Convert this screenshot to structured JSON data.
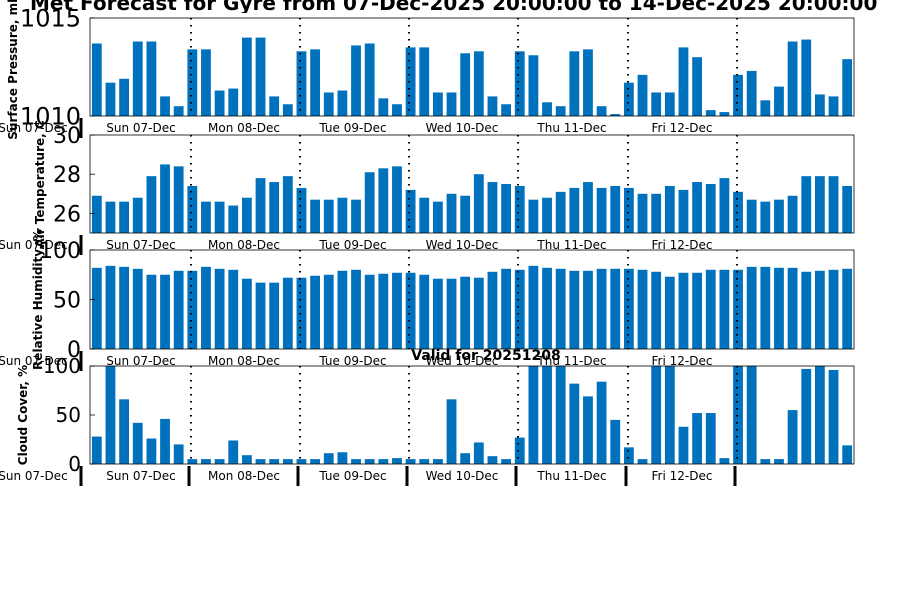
{
  "title": "Met Forecast for Gyre from 07-Dec-2025 20:00:00 to 14-Dec-2025 20:00:00",
  "colors": {
    "bar": "#0072bd",
    "axis": "#000000"
  },
  "chart_data": [
    {
      "type": "bar",
      "ylabel": "Surface Pressure, mb",
      "ylim": [
        1010,
        1015
      ],
      "yticks": [
        1010,
        1015
      ],
      "day_labels": [
        "Sun 07-Dec",
        "Mon 08-Dec",
        "Tue 09-Dec",
        "Wed 10-Dec",
        "Thu 11-Dec",
        "Fri 12-Dec"
      ],
      "corner_label": "Sun 07-Dec",
      "values": [
        1013.7,
        1011.7,
        1011.9,
        1013.8,
        1013.8,
        1011.0,
        1010.5,
        1013.4,
        1013.4,
        1011.3,
        1011.4,
        1014.0,
        1014.0,
        1011.0,
        1010.6,
        1013.3,
        1013.4,
        1011.2,
        1011.3,
        1013.6,
        1013.7,
        1010.9,
        1010.6,
        1013.5,
        1013.5,
        1011.2,
        1011.2,
        1013.2,
        1013.3,
        1011.0,
        1010.6,
        1013.3,
        1013.1,
        1010.7,
        1010.5,
        1013.3,
        1013.4,
        1010.5,
        1010.1,
        1011.7,
        1012.1,
        1011.2,
        1011.2,
        1013.5,
        1013.0,
        1010.3,
        1010.2,
        1012.1,
        1012.3,
        1010.8,
        1011.5,
        1013.8,
        1013.9,
        1011.1,
        1011.0,
        1012.9
      ]
    },
    {
      "type": "bar",
      "ylabel": "Air Temperature, C",
      "ylim": [
        25,
        30
      ],
      "yticks": [
        26,
        28,
        30
      ],
      "day_labels": [
        "Sun 07-Dec",
        "Mon 08-Dec",
        "Tue 09-Dec",
        "Wed 10-Dec",
        "Thu 11-Dec",
        "Fri 12-Dec"
      ],
      "corner_label": "Sun 07-Dec",
      "values": [
        26.9,
        26.6,
        26.6,
        26.8,
        27.9,
        28.5,
        28.4,
        27.4,
        26.6,
        26.6,
        26.4,
        26.8,
        27.8,
        27.6,
        27.9,
        27.3,
        26.7,
        26.7,
        26.8,
        26.7,
        28.1,
        28.3,
        28.4,
        27.2,
        26.8,
        26.6,
        27.0,
        26.9,
        28.0,
        27.6,
        27.5,
        27.4,
        26.7,
        26.8,
        27.1,
        27.3,
        27.6,
        27.3,
        27.4,
        27.3,
        27.0,
        27.0,
        27.4,
        27.2,
        27.6,
        27.5,
        27.8,
        27.1,
        26.7,
        26.6,
        26.7,
        26.9,
        27.9,
        27.9,
        27.9,
        27.4
      ]
    },
    {
      "type": "bar",
      "ylabel": "Relative Humidity, %",
      "ylim": [
        0,
        100
      ],
      "yticks": [
        0,
        50,
        100
      ],
      "day_labels": [
        "Sun 07-Dec",
        "Mon 08-Dec",
        "Tue 09-Dec",
        "Wed 10-Dec",
        "Thu 11-Dec",
        "Fri 12-Dec"
      ],
      "corner_label": "Sun 07-Dec",
      "values": [
        82,
        84,
        83,
        81,
        75,
        75,
        79,
        79,
        83,
        81,
        80,
        71,
        67,
        67,
        72,
        72,
        74,
        75,
        79,
        80,
        75,
        76,
        77,
        77,
        75,
        71,
        71,
        73,
        72,
        78,
        81,
        80,
        84,
        82,
        81,
        79,
        79,
        81,
        81,
        81,
        80,
        78,
        73,
        77,
        77,
        80,
        80,
        80,
        83,
        83,
        82,
        82,
        78,
        79,
        80,
        81
      ]
    },
    {
      "type": "bar",
      "title": "Valid for 20251208",
      "ylabel": "Cloud Cover, %",
      "ylim": [
        0,
        100
      ],
      "yticks": [
        0,
        50,
        100
      ],
      "day_labels": [
        "Sun 07-Dec",
        "Mon 08-Dec",
        "Tue 09-Dec",
        "Wed 10-Dec",
        "Thu 11-Dec",
        "Fri 12-Dec"
      ],
      "corner_label": "Sun 07-Dec",
      "values": [
        28,
        100,
        66,
        42,
        26,
        46,
        20,
        5,
        5,
        5,
        24,
        9,
        5,
        5,
        5,
        5,
        5,
        11,
        12,
        5,
        5,
        5,
        6,
        5,
        5,
        5,
        66,
        11,
        22,
        8,
        5,
        27,
        100,
        100,
        100,
        82,
        69,
        84,
        45,
        17,
        5,
        100,
        100,
        38,
        52,
        52,
        6,
        100,
        100,
        5,
        5,
        55,
        97,
        100,
        96,
        19
      ]
    }
  ]
}
